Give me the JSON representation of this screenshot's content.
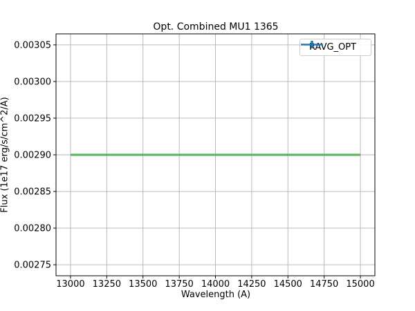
{
  "chart_data": {
    "type": "line",
    "title": "Opt. Combined MU1 1365",
    "xlabel": "Wavelength (A)",
    "ylabel": "Flux (1e17 erg/s/cm^2/A)",
    "xlim": [
      12900,
      15100
    ],
    "ylim": [
      0.002735,
      0.003065
    ],
    "xticks": [
      13000,
      13250,
      13500,
      13750,
      14000,
      14250,
      14500,
      14750,
      15000
    ],
    "yticks": [
      0.00275,
      0.0028,
      0.00285,
      0.0029,
      0.00295,
      0.003,
      0.00305
    ],
    "ytick_decimals": 5,
    "grid": true,
    "grid_color": "#b0b0b0",
    "axes_edge_color": "#000000",
    "legend": {
      "position": "upper right",
      "entries": [
        {
          "label": "RAVG_OPT",
          "color": "#1f77b4",
          "marker": "errorbar"
        }
      ]
    },
    "series": [
      {
        "name": "RAVG_OPT",
        "x": [
          13000,
          15000
        ],
        "y": [
          0.0029,
          0.0029
        ],
        "line_color": "#4ca84f",
        "band_color": "rgba(92,184,92,0.6)",
        "note": "flat line at constant flux 0.0029 from 13000 A to 15000 A"
      }
    ]
  }
}
